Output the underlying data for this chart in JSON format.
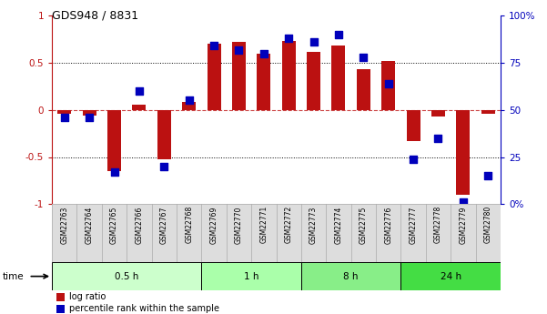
{
  "title": "GDS948 / 8831",
  "samples": [
    "GSM22763",
    "GSM22764",
    "GSM22765",
    "GSM22766",
    "GSM22767",
    "GSM22768",
    "GSM22769",
    "GSM22770",
    "GSM22771",
    "GSM22772",
    "GSM22773",
    "GSM22774",
    "GSM22775",
    "GSM22776",
    "GSM22777",
    "GSM22778",
    "GSM22779",
    "GSM22780"
  ],
  "log_ratio": [
    -0.04,
    -0.06,
    -0.65,
    0.06,
    -0.52,
    0.08,
    0.7,
    0.72,
    0.6,
    0.73,
    0.62,
    0.68,
    0.43,
    0.52,
    -0.33,
    -0.07,
    -0.9,
    -0.04
  ],
  "percentile_rank": [
    46,
    46,
    17,
    60,
    20,
    55,
    84,
    82,
    80,
    88,
    86,
    90,
    78,
    64,
    24,
    35,
    1,
    15
  ],
  "groups": [
    {
      "label": "0.5 h",
      "start": 0,
      "end": 6,
      "color": "#ccffcc"
    },
    {
      "label": "1 h",
      "start": 6,
      "end": 10,
      "color": "#aaffaa"
    },
    {
      "label": "8 h",
      "start": 10,
      "end": 14,
      "color": "#88ee88"
    },
    {
      "label": "24 h",
      "start": 14,
      "end": 18,
      "color": "#44dd44"
    }
  ],
  "bar_color": "#bb1111",
  "dot_color": "#0000bb",
  "ylim_left": [
    -1,
    1
  ],
  "ylim_right": [
    0,
    100
  ],
  "yticks_left": [
    -1,
    -0.5,
    0,
    0.5,
    1
  ],
  "yticks_right": [
    0,
    25,
    50,
    75,
    100
  ],
  "ytick_labels_right": [
    "0%",
    "25",
    "50",
    "75",
    "100%"
  ],
  "hlines_dotted": [
    -0.5,
    0.5
  ],
  "hline_zero": 0,
  "background_color": "#ffffff",
  "bar_width": 0.55,
  "dot_size": 28,
  "sample_box_color": "#dddddd",
  "sample_box_border": "#aaaaaa"
}
